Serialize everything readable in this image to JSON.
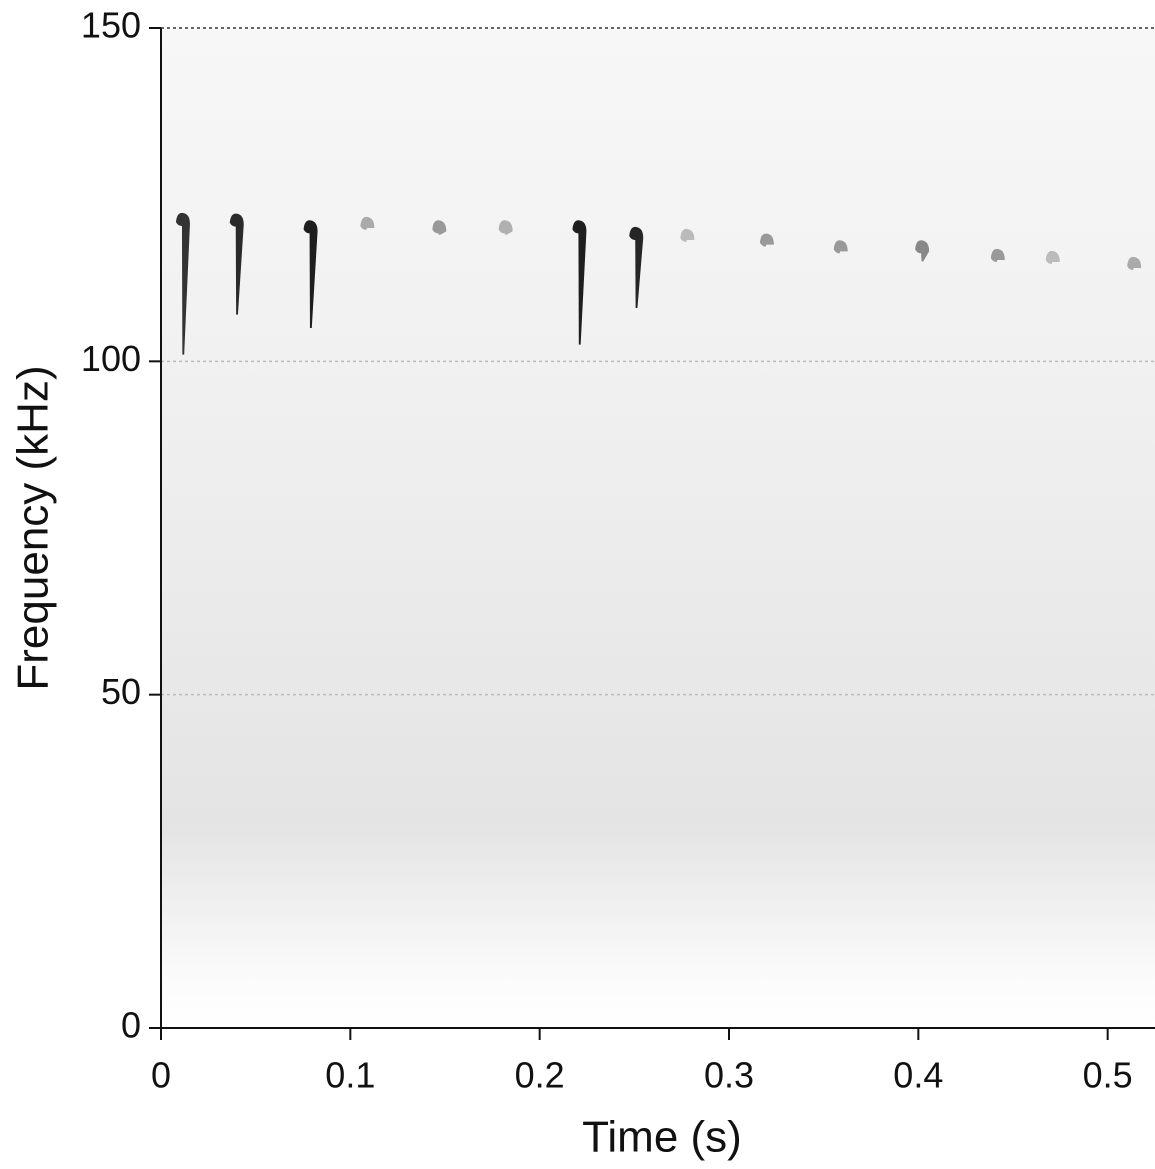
{
  "chart_data": {
    "type": "spectrogram",
    "xlabel": "Time (s)",
    "ylabel": "Frequency (kHz)",
    "x": [
      0.0116,
      0.04,
      0.079,
      0.109,
      0.147,
      0.182,
      0.221,
      0.251,
      0.278,
      0.32,
      0.359,
      0.402,
      0.442,
      0.471,
      0.514
    ],
    "high": [
      122.1,
      122,
      121,
      121.5,
      121,
      121,
      121,
      120,
      119.7,
      119,
      118,
      118,
      116.7,
      116.4,
      115.5
    ],
    "low": [
      101,
      107,
      105,
      120,
      119,
      119,
      102.5,
      108,
      118.8,
      118,
      116.7,
      115,
      115.5,
      115.5,
      114.6
    ],
    "colors": [
      "#333333",
      "#2a2a2a",
      "#1e1e1e",
      "#aaaaaa",
      "#999999",
      "#b0b0b0",
      "#1e1e1e",
      "#262626",
      "#bbbbbb",
      "#999999",
      "#999999",
      "#888888",
      "#999999",
      "#bbbbbb",
      "#aaaaaa"
    ],
    "xlim": [
      0,
      0.525
    ],
    "ylim": [
      0,
      150
    ],
    "xticks": [
      0,
      0.1,
      0.2,
      0.3,
      0.4,
      0.5
    ],
    "yticks": [
      0,
      50,
      100,
      150
    ],
    "grid": true
  }
}
